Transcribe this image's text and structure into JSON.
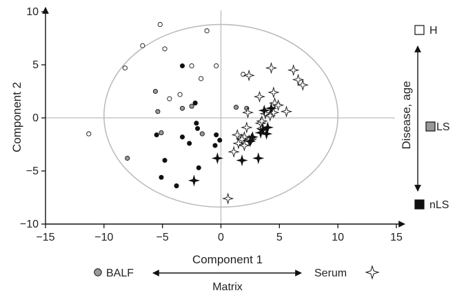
{
  "chart_data": {
    "type": "scatter",
    "xlabel": "Component 1",
    "ylabel": "Component 2",
    "xlim": [
      -15,
      15
    ],
    "ylim": [
      -10,
      10
    ],
    "xticks": [
      -15,
      -10,
      -5,
      0,
      5,
      10,
      15
    ],
    "yticks": [
      -10,
      -5,
      0,
      5,
      10
    ],
    "xtick_labels": [
      "−15",
      "−10",
      "−5",
      "0",
      "5",
      "10",
      "15"
    ],
    "ytick_labels": [
      "−10",
      "−5",
      "0",
      "5",
      "10"
    ],
    "ellipse": {
      "cx": 0,
      "cy": 0.2,
      "rx": 10,
      "ry": 8.6
    },
    "series": [
      {
        "matrix": "BALF",
        "group": "H",
        "marker": "circle",
        "fill": "#ffffff",
        "points": [
          [
            -11.3,
            -1.5
          ],
          [
            -8.2,
            4.7
          ],
          [
            -6.7,
            6.8
          ],
          [
            -5.2,
            8.8
          ],
          [
            -4.8,
            6.5
          ],
          [
            -4.4,
            1.8
          ],
          [
            -3.5,
            2.2
          ],
          [
            -2.5,
            4.9
          ],
          [
            -1.7,
            3.7
          ],
          [
            -1.2,
            8.2
          ],
          [
            -0.4,
            4.9
          ],
          [
            1.9,
            4.1
          ]
        ]
      },
      {
        "matrix": "BALF",
        "group": "LS",
        "marker": "circle",
        "fill": "#999999",
        "points": [
          [
            -8.0,
            -3.8
          ],
          [
            -5.6,
            2.5
          ],
          [
            -5.4,
            0.6
          ],
          [
            -5.1,
            -1.4
          ],
          [
            -3.3,
            0.9
          ],
          [
            -2.5,
            1.1
          ],
          [
            -1.6,
            -1.5
          ],
          [
            1.3,
            1.0
          ],
          [
            2.2,
            0.9
          ]
        ]
      },
      {
        "matrix": "BALF",
        "group": "nLS",
        "marker": "circle",
        "fill": "#111111",
        "points": [
          [
            -5.5,
            -1.6
          ],
          [
            -5.1,
            -5.6
          ],
          [
            -4.8,
            -4.0
          ],
          [
            -3.8,
            -6.4
          ],
          [
            -3.3,
            4.9
          ],
          [
            -3.3,
            -1.8
          ],
          [
            -2.7,
            -2.4
          ],
          [
            -2.2,
            1.4
          ],
          [
            -2.1,
            -0.5
          ],
          [
            -2.0,
            -1.0
          ],
          [
            -1.9,
            -4.7
          ],
          [
            -0.4,
            -1.6
          ],
          [
            -0.1,
            -2.1
          ],
          [
            -0.5,
            -2.6
          ]
        ]
      },
      {
        "matrix": "Serum",
        "group": "LS",
        "marker": "star",
        "fill": "#ffffff",
        "points": [
          [
            2.4,
            4.0
          ],
          [
            3.3,
            2.0
          ],
          [
            4.3,
            4.7
          ],
          [
            4.6,
            1.4
          ],
          [
            4.9,
            1.2
          ],
          [
            4.5,
            2.4
          ],
          [
            6.2,
            4.5
          ],
          [
            6.6,
            3.6
          ],
          [
            7.0,
            3.1
          ],
          [
            5.6,
            0.6
          ],
          [
            1.1,
            -3.2
          ],
          [
            1.4,
            -1.6
          ],
          [
            1.5,
            -2.4
          ],
          [
            2.0,
            -1.8
          ],
          [
            2.2,
            -0.9
          ],
          [
            2.6,
            -2.0
          ],
          [
            3.4,
            -0.5
          ],
          [
            3.8,
            0.4
          ],
          [
            3.5,
            -1.0
          ],
          [
            4.2,
            0.2
          ],
          [
            4.5,
            0.5
          ],
          [
            1.8,
            -2.0
          ],
          [
            2.0,
            -2.6
          ],
          [
            2.4,
            -2.1
          ],
          [
            2.3,
            0.5
          ],
          [
            3.5,
            -0.3
          ],
          [
            0.6,
            -7.6
          ]
        ]
      },
      {
        "matrix": "Serum",
        "group": "nLS",
        "marker": "star",
        "fill": "#111111",
        "points": [
          [
            -2.3,
            -5.9
          ],
          [
            -0.3,
            -3.8
          ],
          [
            1.8,
            -4.0
          ],
          [
            3.2,
            -3.8
          ],
          [
            2.5,
            -2.2
          ],
          [
            2.7,
            -1.8
          ],
          [
            3.4,
            -1.4
          ],
          [
            3.6,
            -1.1
          ],
          [
            3.9,
            -1.5
          ],
          [
            4.0,
            -0.9
          ],
          [
            3.7,
            0.7
          ],
          [
            4.3,
            0.9
          ]
        ]
      }
    ],
    "legend": {
      "position": "right",
      "axis_label": "Disease, age",
      "items": [
        {
          "label": "H",
          "fill": "#ffffff"
        },
        {
          "label": "LS",
          "fill": "#999999"
        },
        {
          "label": "nLS",
          "fill": "#111111"
        }
      ]
    },
    "matrix_legend": {
      "position": "bottom",
      "axis_label": "Matrix",
      "left_label": "BALF",
      "right_label": "Serum"
    }
  }
}
